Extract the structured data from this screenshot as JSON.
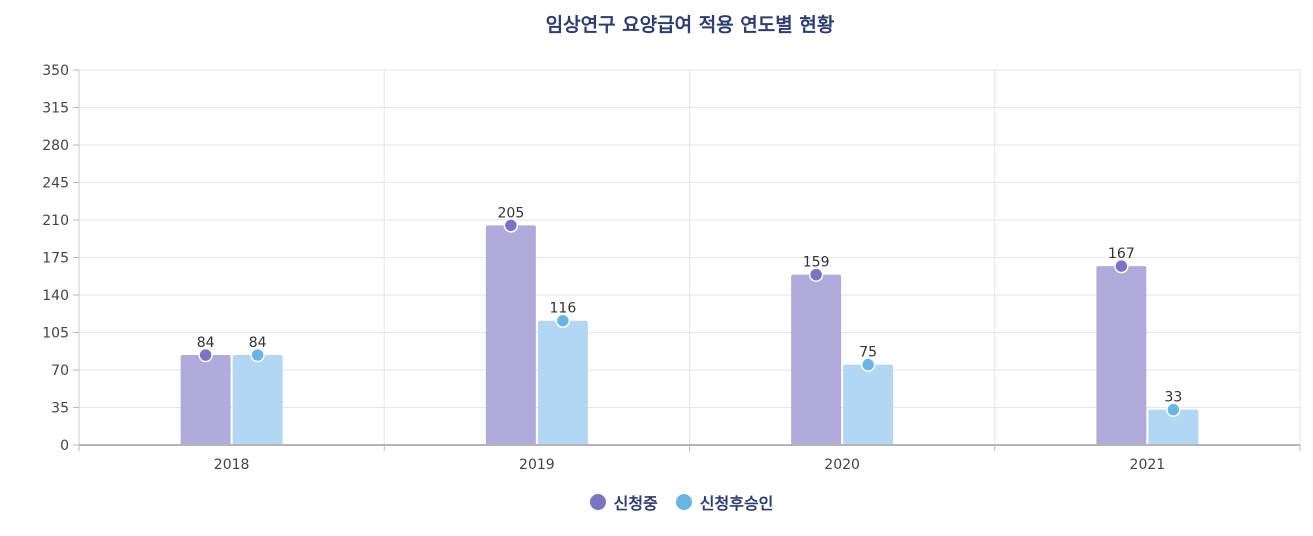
{
  "chart_data": {
    "type": "bar",
    "title": "임상연구 요양급여 적용 연도별 현황",
    "categories": [
      "2018",
      "2019",
      "2020",
      "2021"
    ],
    "series": [
      {
        "name": "신청중",
        "values": [
          84,
          205,
          159,
          167
        ],
        "bar_color": "#b0abdb",
        "marker_color": "#7b74c2"
      },
      {
        "name": "신청후승인",
        "values": [
          84,
          116,
          75,
          33
        ],
        "bar_color": "#b3d7f2",
        "marker_color": "#6cb4e4"
      }
    ],
    "yticks": [
      "0",
      "35",
      "70",
      "105",
      "140",
      "175",
      "210",
      "245",
      "280",
      "315",
      "350"
    ],
    "ylim": [
      0,
      350
    ],
    "grid": true,
    "legend_position": "bottom-center"
  }
}
